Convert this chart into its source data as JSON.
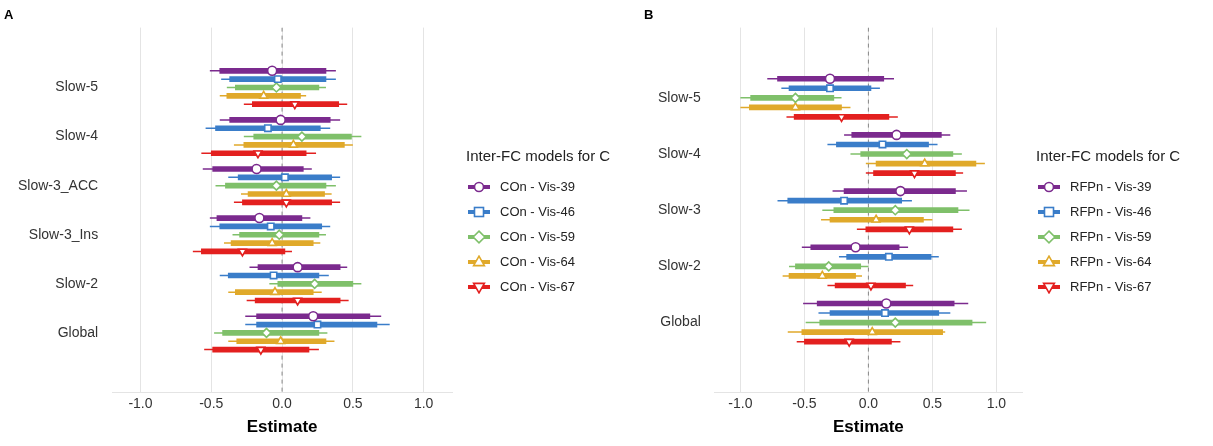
{
  "chart_data": [
    {
      "type": "box",
      "orientation": "horizontal",
      "title": "A",
      "xlabel": "Estimate",
      "legend_title": "Inter-FC models for C",
      "legend": "right",
      "grid": "x",
      "xlim": [
        -1.2,
        1.2
      ],
      "xticks": [
        {
          "value": -1,
          "label": "-1.0"
        },
        {
          "value": -0.5,
          "label": "-0.5"
        },
        {
          "value": 0,
          "label": "0.0"
        },
        {
          "value": 0.5,
          "label": "0.5"
        },
        {
          "value": 1,
          "label": "1.0"
        }
      ],
      "categories": [
        "Slow-5",
        "Slow-4",
        "Slow-3_ACC",
        "Slow-3_Ins",
        "Slow-2",
        "Global"
      ],
      "ref_lines": [
        {
          "axis": "x",
          "value": 0,
          "color": "#888888",
          "line_style": "dashed"
        }
      ],
      "series": [
        {
          "name": "COn - Vis-39",
          "color": "#7b2a8e",
          "marker": "circle",
          "boxes": [
            {
              "low": -0.51,
              "q1": -0.44,
              "median": -0.07,
              "q3": 0.31,
              "high": 0.38
            },
            {
              "low": -0.44,
              "q1": -0.37,
              "median": -0.01,
              "q3": 0.34,
              "high": 0.41
            },
            {
              "low": -0.56,
              "q1": -0.49,
              "median": -0.18,
              "q3": 0.15,
              "high": 0.21
            },
            {
              "low": -0.51,
              "q1": -0.46,
              "median": -0.16,
              "q3": 0.14,
              "high": 0.2
            },
            {
              "low": -0.23,
              "q1": -0.17,
              "median": 0.11,
              "q3": 0.41,
              "high": 0.46
            },
            {
              "low": -0.26,
              "q1": -0.18,
              "median": 0.22,
              "q3": 0.62,
              "high": 0.7
            }
          ]
        },
        {
          "name": "COn - Vis-46",
          "color": "#3a7dc9",
          "marker": "square",
          "boxes": [
            {
              "low": -0.43,
              "q1": -0.37,
              "median": -0.03,
              "q3": 0.31,
              "high": 0.38
            },
            {
              "low": -0.54,
              "q1": -0.47,
              "median": -0.1,
              "q3": 0.27,
              "high": 0.34
            },
            {
              "low": -0.38,
              "q1": -0.31,
              "median": 0.02,
              "q3": 0.35,
              "high": 0.41
            },
            {
              "low": -0.51,
              "q1": -0.44,
              "median": -0.08,
              "q3": 0.28,
              "high": 0.34
            },
            {
              "low": -0.44,
              "q1": -0.38,
              "median": -0.06,
              "q3": 0.26,
              "high": 0.33
            },
            {
              "low": -0.26,
              "q1": -0.18,
              "median": 0.25,
              "q3": 0.67,
              "high": 0.76
            }
          ]
        },
        {
          "name": "COn - Vis-59",
          "color": "#7fc06a",
          "marker": "diamond",
          "boxes": [
            {
              "low": -0.39,
              "q1": -0.33,
              "median": -0.04,
              "q3": 0.26,
              "high": 0.31
            },
            {
              "low": -0.27,
              "q1": -0.2,
              "median": 0.14,
              "q3": 0.49,
              "high": 0.56
            },
            {
              "low": -0.47,
              "q1": -0.4,
              "median": -0.04,
              "q3": 0.31,
              "high": 0.38
            },
            {
              "low": -0.35,
              "q1": -0.3,
              "median": -0.02,
              "q3": 0.26,
              "high": 0.31
            },
            {
              "low": -0.09,
              "q1": -0.03,
              "median": 0.23,
              "q3": 0.5,
              "high": 0.56
            },
            {
              "low": -0.48,
              "q1": -0.42,
              "median": -0.11,
              "q3": 0.26,
              "high": 0.32
            }
          ]
        },
        {
          "name": "COn - Vis-64",
          "color": "#e0a92a",
          "marker": "triangle",
          "boxes": [
            {
              "low": -0.44,
              "q1": -0.39,
              "median": -0.13,
              "q3": 0.13,
              "high": 0.17
            },
            {
              "low": -0.34,
              "q1": -0.27,
              "median": 0.08,
              "q3": 0.44,
              "high": 0.5
            },
            {
              "low": -0.29,
              "q1": -0.24,
              "median": 0.03,
              "q3": 0.3,
              "high": 0.35
            },
            {
              "low": -0.41,
              "q1": -0.36,
              "median": -0.07,
              "q3": 0.22,
              "high": 0.27
            },
            {
              "low": -0.38,
              "q1": -0.33,
              "median": -0.05,
              "q3": 0.22,
              "high": 0.28
            },
            {
              "low": -0.38,
              "q1": -0.32,
              "median": -0.01,
              "q3": 0.31,
              "high": 0.37
            }
          ]
        },
        {
          "name": "COn - Vis-67",
          "color": "#e3201f",
          "marker": "triangle-down",
          "boxes": [
            {
              "low": -0.27,
              "q1": -0.21,
              "median": 0.09,
              "q3": 0.4,
              "high": 0.46
            },
            {
              "low": -0.57,
              "q1": -0.5,
              "median": -0.17,
              "q3": 0.17,
              "high": 0.24
            },
            {
              "low": -0.34,
              "q1": -0.28,
              "median": 0.03,
              "q3": 0.35,
              "high": 0.41
            },
            {
              "low": -0.63,
              "q1": -0.57,
              "median": -0.28,
              "q3": 0.02,
              "high": 0.07
            },
            {
              "low": -0.25,
              "q1": -0.19,
              "median": 0.11,
              "q3": 0.41,
              "high": 0.47
            },
            {
              "low": -0.55,
              "q1": -0.49,
              "median": -0.15,
              "q3": 0.19,
              "high": 0.26
            }
          ]
        }
      ]
    },
    {
      "type": "box",
      "orientation": "horizontal",
      "title": "B",
      "xlabel": "Estimate",
      "legend_title": "Inter-FC models for C",
      "legend": "right",
      "grid": "x",
      "xlim": [
        -1.2,
        1.2
      ],
      "xticks": [
        {
          "value": -1,
          "label": "-1.0"
        },
        {
          "value": -0.5,
          "label": "-0.5"
        },
        {
          "value": 0,
          "label": "0.0"
        },
        {
          "value": 0.5,
          "label": "0.5"
        },
        {
          "value": 1,
          "label": "1.0"
        }
      ],
      "categories": [
        "Slow-5",
        "Slow-4",
        "Slow-3",
        "Slow-2",
        "Global"
      ],
      "ref_lines": [
        {
          "axis": "x",
          "value": 0,
          "color": "#888888",
          "line_style": "dashed"
        }
      ],
      "series": [
        {
          "name": "RFPn - Vis-39",
          "color": "#7b2a8e",
          "marker": "circle",
          "boxes": [
            {
              "low": -0.79,
              "q1": -0.71,
              "median": -0.3,
              "q3": 0.12,
              "high": 0.2
            },
            {
              "low": -0.19,
              "q1": -0.13,
              "median": 0.22,
              "q3": 0.57,
              "high": 0.64
            },
            {
              "low": -0.28,
              "q1": -0.19,
              "median": 0.25,
              "q3": 0.68,
              "high": 0.77
            },
            {
              "low": -0.52,
              "q1": -0.45,
              "median": -0.1,
              "q3": 0.24,
              "high": 0.31
            },
            {
              "low": -0.51,
              "q1": -0.4,
              "median": 0.14,
              "q3": 0.67,
              "high": 0.78
            }
          ]
        },
        {
          "name": "RFPn - Vis-46",
          "color": "#3a7dc9",
          "marker": "square",
          "boxes": [
            {
              "low": -0.68,
              "q1": -0.62,
              "median": -0.3,
              "q3": 0.02,
              "high": 0.09
            },
            {
              "low": -0.32,
              "q1": -0.25,
              "median": 0.11,
              "q3": 0.47,
              "high": 0.54
            },
            {
              "low": -0.71,
              "q1": -0.63,
              "median": -0.19,
              "q3": 0.26,
              "high": 0.34
            },
            {
              "low": -0.23,
              "q1": -0.17,
              "median": 0.16,
              "q3": 0.49,
              "high": 0.55
            },
            {
              "low": -0.39,
              "q1": -0.3,
              "median": 0.13,
              "q3": 0.55,
              "high": 0.64
            }
          ]
        },
        {
          "name": "RFPn - Vis-59",
          "color": "#7fc06a",
          "marker": "diamond",
          "boxes": [
            {
              "low": -1.0,
              "q1": -0.92,
              "median": -0.57,
              "q3": -0.27,
              "high": -0.21
            },
            {
              "low": -0.14,
              "q1": -0.06,
              "median": 0.3,
              "q3": 0.66,
              "high": 0.73
            },
            {
              "low": -0.36,
              "q1": -0.27,
              "median": 0.21,
              "q3": 0.7,
              "high": 0.79
            },
            {
              "low": -0.62,
              "q1": -0.57,
              "median": -0.31,
              "q3": -0.06,
              "high": 0.0
            },
            {
              "low": -0.49,
              "q1": -0.38,
              "median": 0.21,
              "q3": 0.81,
              "high": 0.92
            }
          ]
        },
        {
          "name": "RFPn - Vis-64",
          "color": "#e0a92a",
          "marker": "triangle",
          "boxes": [
            {
              "low": -1.0,
              "q1": -0.93,
              "median": -0.57,
              "q3": -0.21,
              "high": -0.14
            },
            {
              "low": -0.02,
              "q1": 0.06,
              "median": 0.44,
              "q3": 0.84,
              "high": 0.91
            },
            {
              "low": -0.37,
              "q1": -0.3,
              "median": 0.06,
              "q3": 0.43,
              "high": 0.5
            },
            {
              "low": -0.67,
              "q1": -0.62,
              "median": -0.36,
              "q3": -0.1,
              "high": -0.05
            },
            {
              "low": -0.63,
              "q1": -0.52,
              "median": 0.03,
              "q3": 0.58,
              "high": 0.6
            }
          ]
        },
        {
          "name": "RFPn - Vis-67",
          "color": "#e3201f",
          "marker": "triangle-down",
          "boxes": [
            {
              "low": -0.64,
              "q1": -0.58,
              "median": -0.21,
              "q3": 0.16,
              "high": 0.23
            },
            {
              "low": -0.02,
              "q1": 0.04,
              "median": 0.36,
              "q3": 0.68,
              "high": 0.74
            },
            {
              "low": -0.09,
              "q1": -0.02,
              "median": 0.32,
              "q3": 0.66,
              "high": 0.73
            },
            {
              "low": -0.32,
              "q1": -0.26,
              "median": 0.02,
              "q3": 0.29,
              "high": 0.35
            },
            {
              "low": -0.56,
              "q1": -0.5,
              "median": -0.15,
              "q3": 0.18,
              "high": 0.25
            }
          ]
        }
      ]
    }
  ]
}
